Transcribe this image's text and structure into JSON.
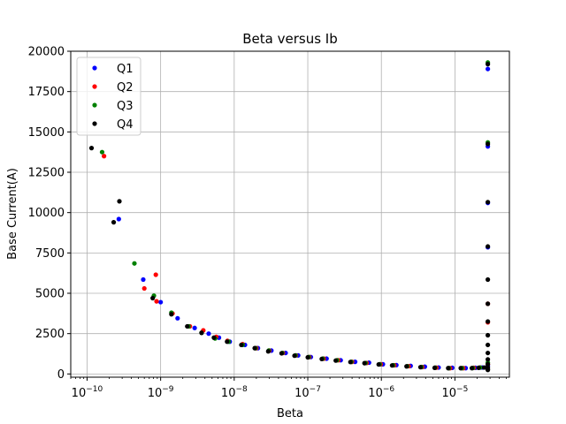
{
  "chart_data": {
    "type": "scatter",
    "title": "Beta versus Ib",
    "xlabel": "Beta",
    "ylabel": "Base Current(A)",
    "x_scale": "log",
    "xlim": [
      6e-11,
      5.5e-05
    ],
    "ylim": [
      -200,
      20000
    ],
    "grid": true,
    "legend_position": "top-left",
    "x_ticks": [
      1e-10,
      1e-09,
      1e-08,
      1e-07,
      1e-06,
      1e-05
    ],
    "x_tick_labels": [
      {
        "base": "10",
        "exp": "−10"
      },
      {
        "base": "10",
        "exp": "−9"
      },
      {
        "base": "10",
        "exp": "−8"
      },
      {
        "base": "10",
        "exp": "−7"
      },
      {
        "base": "10",
        "exp": "−6"
      },
      {
        "base": "10",
        "exp": "−5"
      }
    ],
    "y_ticks": [
      0,
      2500,
      5000,
      7500,
      10000,
      12500,
      15000,
      17500,
      20000
    ],
    "y_tick_labels": [
      "0",
      "2500",
      "5000",
      "7500",
      "10000",
      "12500",
      "15000",
      "17500",
      "20000"
    ],
    "series": [
      {
        "name": "Q1",
        "color": "#0000ff",
        "x": [
          2.7e-10,
          5.8e-10,
          1e-09,
          1.7e-09,
          2.9e-09,
          4.5e-09,
          6.2e-09,
          8.7e-09,
          1.4e-08,
          2.1e-08,
          3.2e-08,
          5e-08,
          7.4e-08,
          1.1e-07,
          1.8e-07,
          2.8e-07,
          4.4e-07,
          6.8e-07,
          1.05e-06,
          1.6e-06,
          2.5e-06,
          3.9e-06,
          6e-06,
          9.2e-06,
          1.4e-05,
          1.9e-05,
          2.35e-05,
          2.8e-05,
          2.8e-05,
          2.8e-05,
          2.8e-05,
          2.8e-05
        ],
        "y": [
          9600,
          5850,
          4450,
          3450,
          2850,
          2500,
          2250,
          2000,
          1800,
          1600,
          1450,
          1300,
          1150,
          1050,
          950,
          850,
          750,
          700,
          600,
          550,
          500,
          450,
          400,
          380,
          360,
          380,
          400,
          10600,
          14100,
          18900,
          7850,
          500
        ]
      },
      {
        "name": "Q2",
        "color": "#ff0000",
        "x": [
          1.7e-10,
          6e-10,
          8.6e-10,
          8.8e-10,
          1.45e-09,
          2.5e-09,
          3.8e-09,
          5.7e-09,
          8.1e-09,
          1.3e-08,
          2e-08,
          3e-08,
          4.6e-08,
          6.9e-08,
          1.05e-07,
          1.65e-07,
          2.6e-07,
          4e-07,
          6.3e-07,
          9.8e-07,
          1.5e-06,
          2.35e-06,
          3.6e-06,
          5.6e-06,
          8.6e-06,
          1.3e-05,
          1.8e-05,
          2.2e-05,
          2.8e-05,
          2.8e-05,
          2.8e-05
        ],
        "y": [
          13500,
          5300,
          6150,
          4500,
          3750,
          2950,
          2700,
          2300,
          2050,
          1850,
          1600,
          1450,
          1300,
          1150,
          1050,
          950,
          850,
          750,
          680,
          600,
          540,
          480,
          430,
          390,
          360,
          360,
          380,
          400,
          4350,
          3200,
          600
        ]
      },
      {
        "name": "Q3",
        "color": "#008000",
        "x": [
          1.6e-10,
          4.4e-10,
          8.1e-10,
          1.4e-09,
          2.4e-09,
          3.6e-09,
          5.5e-09,
          8.4e-09,
          1.3e-08,
          1.95e-08,
          2.95e-08,
          4.5e-08,
          6.8e-08,
          1.03e-07,
          1.6e-07,
          2.5e-07,
          3.9e-07,
          6.1e-07,
          9.5e-07,
          1.45e-06,
          2.25e-06,
          3.5e-06,
          5.4e-06,
          8.3e-06,
          1.25e-05,
          1.75e-05,
          2.2e-05,
          2.8e-05,
          2.8e-05,
          2.8e-05
        ],
        "y": [
          13750,
          6850,
          4850,
          3800,
          2950,
          2550,
          2200,
          2000,
          1800,
          1600,
          1450,
          1300,
          1150,
          1050,
          950,
          850,
          750,
          680,
          600,
          540,
          480,
          430,
          390,
          360,
          360,
          370,
          400,
          19300,
          14350,
          700
        ]
      },
      {
        "name": "Q4",
        "color": "#000000",
        "x": [
          1.15e-10,
          2.3e-10,
          2.75e-10,
          7.8e-10,
          1.4e-09,
          2.3e-09,
          3.6e-09,
          5.3e-09,
          8e-09,
          1.25e-08,
          1.9e-08,
          2.9e-08,
          4.4e-08,
          6.6e-08,
          1e-07,
          1.55e-07,
          2.4e-07,
          3.8e-07,
          5.9e-07,
          9.2e-07,
          1.4e-06,
          2.2e-06,
          3.4e-06,
          5.3e-06,
          8.1e-06,
          1.2e-05,
          1.7e-05,
          2.1e-05,
          2.5e-05,
          2.8e-05,
          2.8e-05,
          2.8e-05,
          2.8e-05,
          2.8e-05,
          2.8e-05,
          2.8e-05,
          2.8e-05,
          2.8e-05,
          2.8e-05,
          2.8e-05,
          2.8e-05,
          2.8e-05,
          2.8e-05,
          2.8e-05
        ],
        "y": [
          14000,
          9400,
          10700,
          4700,
          3700,
          2950,
          2550,
          2250,
          2000,
          1800,
          1600,
          1400,
          1280,
          1130,
          1030,
          930,
          830,
          740,
          670,
          590,
          530,
          470,
          420,
          380,
          360,
          360,
          360,
          380,
          400,
          19200,
          14250,
          10650,
          7900,
          5850,
          4350,
          3250,
          2400,
          1800,
          1300,
          900,
          600,
          400,
          300,
          250
        ]
      }
    ]
  }
}
